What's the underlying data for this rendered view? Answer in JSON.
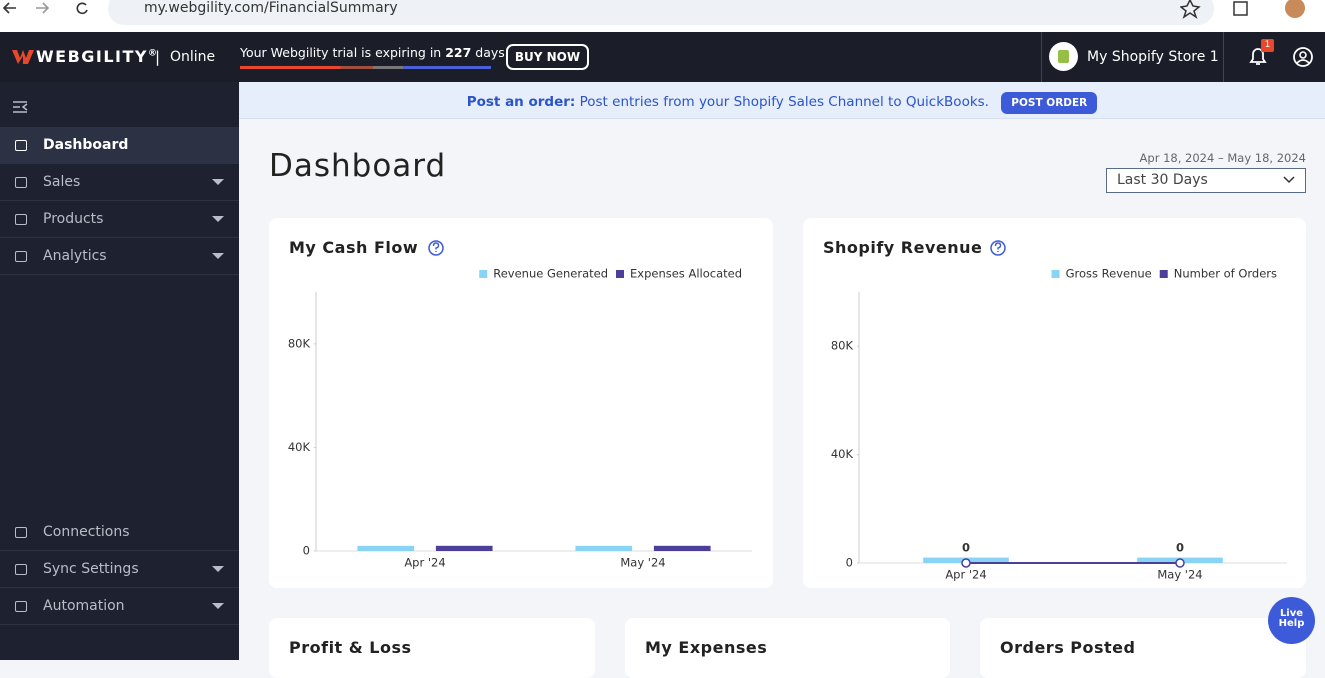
{
  "browser": {
    "url": "my.webgility.com/FinancialSummary"
  },
  "header": {
    "brand": "WEBGILITY",
    "brand_mark": "®",
    "separator": "|",
    "edition": "Online",
    "trial_text": "Your Webgility trial is expiring in",
    "trial_days": "227",
    "trial_suffix": "days!",
    "buy_button": "BUY NOW",
    "store": "My Shopify Store 1",
    "notifications": "1"
  },
  "banner": {
    "label": "Post an order:",
    "text": "Post entries from your Shopify Sales Channel to QuickBooks.",
    "button": "POST ORDER"
  },
  "sidebar": {
    "items": [
      "Dashboard",
      "Sales",
      "Products",
      "Analytics"
    ],
    "bottom_items": [
      "Connections",
      "Sync Settings",
      "Automation"
    ]
  },
  "page": {
    "title": "Dashboard",
    "date_range": "Apr 18, 2024 – May 18, 2024",
    "range_select": "Last 30 Days"
  },
  "chart_data": [
    {
      "type": "bar",
      "title": "My Cash Flow",
      "categories": [
        "Apr '24",
        "May '24"
      ],
      "series": [
        {
          "name": "Revenue Generated",
          "color": "#89d3f5",
          "values": [
            2000,
            2000
          ]
        },
        {
          "name": "Expenses Allocated",
          "color": "#4b3f99",
          "values": [
            2000,
            2000
          ]
        }
      ],
      "ylim": [
        0,
        100000
      ],
      "yticks": [
        0,
        {
          "value": 40000,
          "label": "40K"
        },
        {
          "value": 80000,
          "label": "80K"
        }
      ],
      "legend": "top-right"
    },
    {
      "type": "bar",
      "title": "Shopify Revenue",
      "categories": [
        "Apr '24",
        "May '24"
      ],
      "series": [
        {
          "name": "Gross Revenue",
          "color": "#89d3f5",
          "values": [
            2000,
            2000
          ]
        },
        {
          "name": "Number of Orders",
          "type": "line",
          "color": "#4b3f99",
          "values": [
            0,
            0
          ]
        }
      ],
      "ylim": [
        0,
        100000
      ],
      "yticks": [
        0,
        {
          "value": 40000,
          "label": "40K"
        },
        {
          "value": 80000,
          "label": "80K"
        }
      ],
      "legend": "top-right"
    }
  ],
  "cards": [
    "Profit & Loss",
    "My Expenses",
    "Orders Posted"
  ],
  "live_help": "Live Help"
}
